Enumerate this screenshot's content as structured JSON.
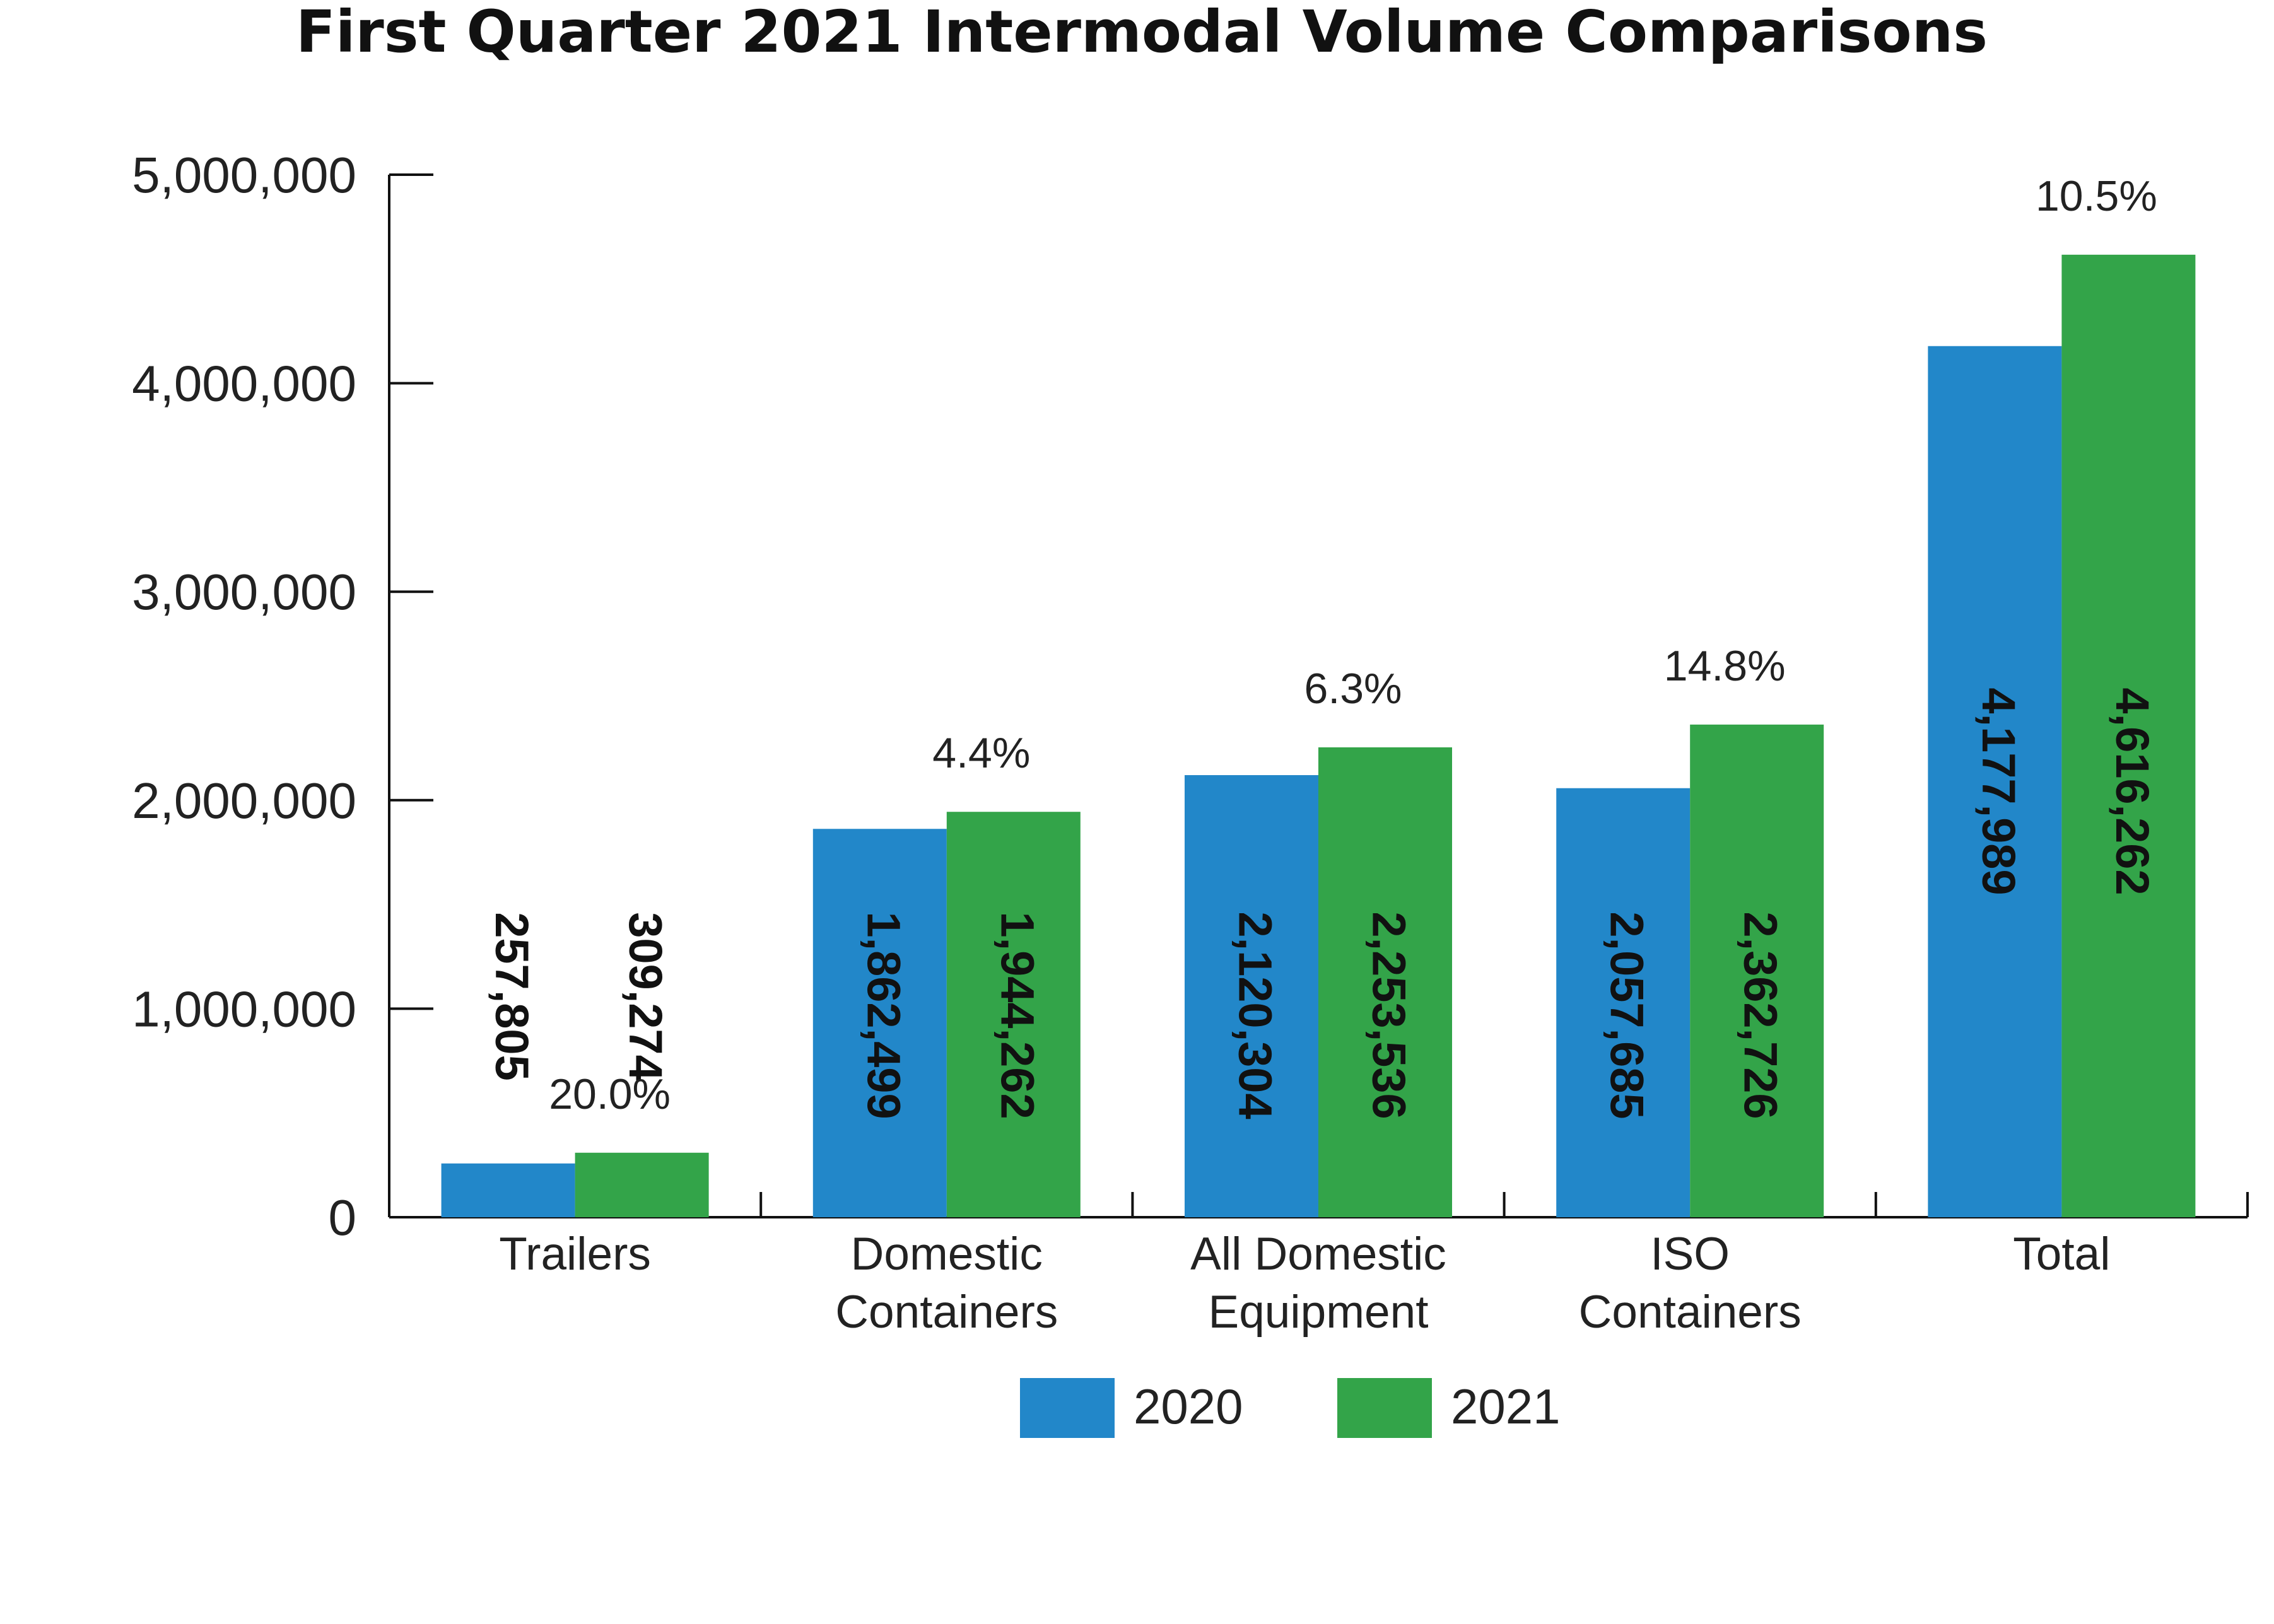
{
  "chart_data": {
    "type": "bar",
    "title": "First Quarter 2021 Intermodal Volume Comparisons",
    "xlabel": "",
    "ylabel": "",
    "ylim": [
      0,
      5000000
    ],
    "yticks": [
      "0",
      "1,000,000",
      "2,000,000",
      "3,000,000",
      "4,000,000",
      "5,000,000"
    ],
    "ytick_values": [
      0,
      1000000,
      2000000,
      3000000,
      4000000,
      5000000
    ],
    "categories": [
      [
        "Trailers"
      ],
      [
        "Domestic",
        "Containers"
      ],
      [
        "All Domestic",
        "Equipment"
      ],
      [
        "ISO",
        "Containers"
      ],
      [
        "Total"
      ]
    ],
    "series": [
      {
        "name": "2020",
        "color": "#2287c9",
        "values": [
          257805,
          1862499,
          2120304,
          2057685,
          4177989
        ],
        "labels": [
          "257,805",
          "1,862,499",
          "2,120,304",
          "2,057,685",
          "4,177,989"
        ]
      },
      {
        "name": "2021",
        "color": "#33a449",
        "values": [
          309274,
          1944262,
          2253536,
          2362726,
          4616262
        ],
        "labels": [
          "309,274",
          "1,944,262",
          "2,253,536",
          "2,362,726",
          "4,616,262"
        ]
      }
    ],
    "annotations": [
      "20.0%",
      "4.4%",
      "6.3%",
      "14.8%",
      "10.5%"
    ],
    "grid": false,
    "legend": "bottom"
  }
}
